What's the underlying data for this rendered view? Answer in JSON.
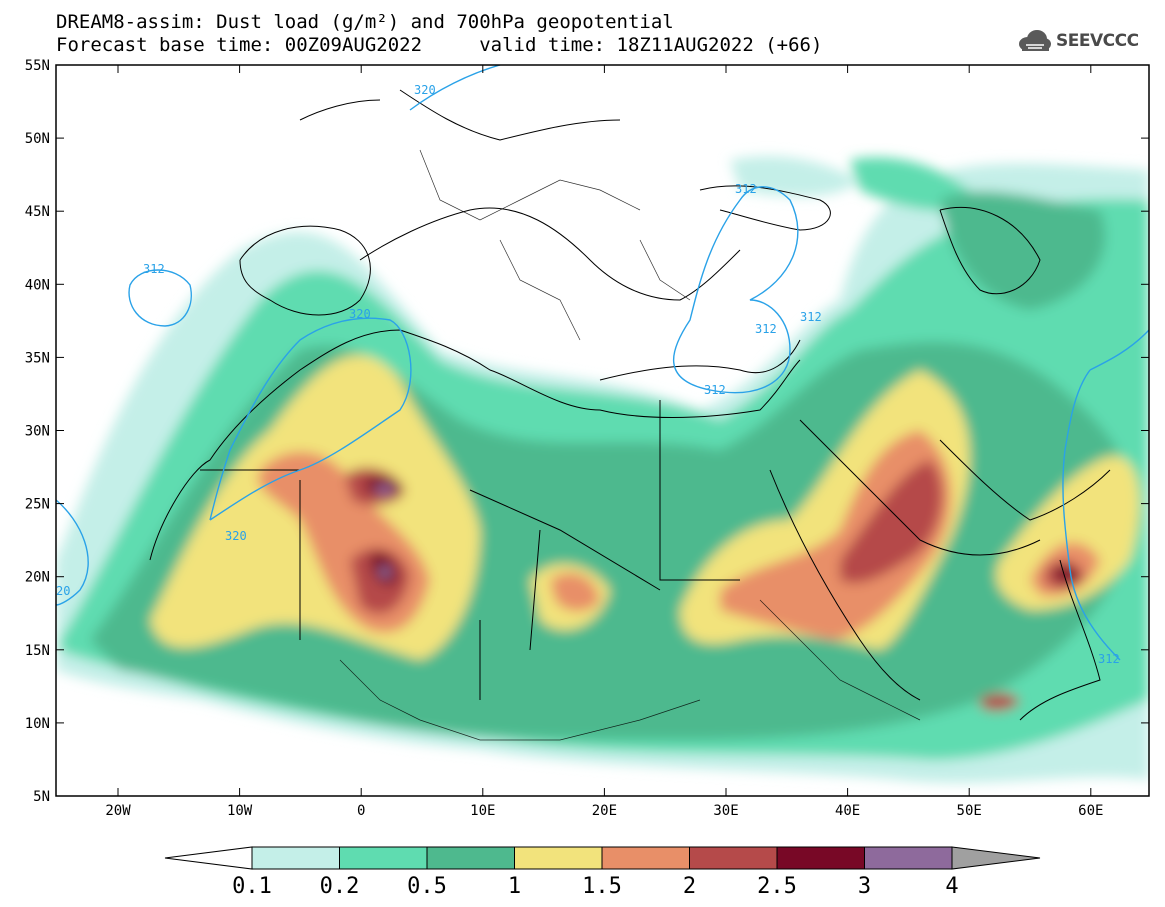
{
  "header": {
    "title_line1": "DREAM8-assim: Dust load (g/m²) and 700hPa geopotential",
    "title_line2": "Forecast base time: 00Z09AUG2022     valid time: 18Z11AUG2022 (+66)",
    "logo_text": "SEEVCCC"
  },
  "map": {
    "lat_labels": [
      "55N",
      "50N",
      "45N",
      "40N",
      "35N",
      "30N",
      "25N",
      "20N",
      "15N",
      "10N",
      "5N"
    ],
    "lon_labels": [
      "20W",
      "10W",
      "0",
      "10E",
      "20E",
      "30E",
      "40E",
      "50E",
      "60E"
    ],
    "contour_labels": [
      "320",
      "312",
      "312",
      "312",
      "312",
      "320",
      "320",
      "312",
      "312",
      "20"
    ]
  },
  "legend": {
    "ticks": [
      "0.1",
      "0.2",
      "0.5",
      "1",
      "1.5",
      "2",
      "2.5",
      "3",
      "4"
    ],
    "colors": [
      "#c4efe8",
      "#5fdcb0",
      "#4eb98e",
      "#f2e37c",
      "#e88f68",
      "#b54a4a",
      "#780826",
      "#8e6a9c",
      "#a0a0a0"
    ]
  }
}
